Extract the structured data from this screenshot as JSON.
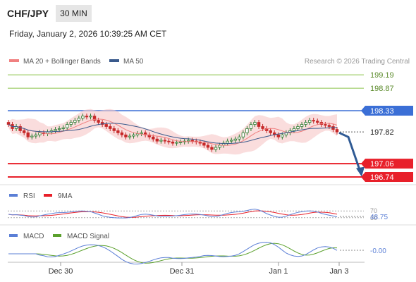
{
  "header": {
    "pair": "CHF/JPY",
    "timeframe": "30 MIN",
    "datetime": "Friday, January 2, 2026 10:39:25 AM CET"
  },
  "legend": {
    "ma20": "MA 20 + Bollinger Bands",
    "ma50": "MA 50",
    "credit": "Research © 2026 Trading Central",
    "rsi": "RSI",
    "rsi_ma": "9MA",
    "macd": "MACD",
    "macd_signal": "MACD Signal"
  },
  "colors": {
    "green_level": "#8bc34a",
    "resistance": "#3b6fd6",
    "support": "#e8202a",
    "candle_up": "#2e7d32",
    "candle_down": "#c62828",
    "band_fill": "#f7c7c7",
    "ma20": "#f08080",
    "ma50": "#3a5a8c",
    "arrow": "#2f5a94",
    "rsi": "#5b7fd6",
    "rsi_ma": "#e8202a",
    "macd": "#5b7fd6",
    "macd_signal": "#5aa02c"
  },
  "chart_data": {
    "type": "candlestick",
    "ylim": [
      196.5,
      199.45
    ],
    "x_ticks": [
      "Dec 30",
      "Dec 31",
      "Jan 1",
      "Jan 3"
    ],
    "levels": [
      {
        "value": 199.19,
        "label": "199.19",
        "kind": "target"
      },
      {
        "value": 198.87,
        "label": "198.87",
        "kind": "target"
      },
      {
        "value": 198.33,
        "label": "198.33",
        "kind": "resistance"
      },
      {
        "value": 197.06,
        "label": "197.06",
        "kind": "support"
      },
      {
        "value": 196.74,
        "label": "196.74",
        "kind": "support"
      }
    ],
    "last_price": {
      "value": 197.82,
      "label": "197.82"
    },
    "forecast_arrow": {
      "from": 197.8,
      "to": 196.78
    },
    "rsi": {
      "last_label": "48.75",
      "level_labels": [
        "70",
        "30"
      ],
      "ylim": [
        0,
        100
      ],
      "levels": [
        70,
        30
      ]
    },
    "macd": {
      "last_label": "-0.00"
    },
    "series_close": [
      198.0,
      197.9,
      197.95,
      197.85,
      197.8,
      197.7,
      197.72,
      197.75,
      197.8,
      197.78,
      197.82,
      197.85,
      197.88,
      197.9,
      197.92,
      198.0,
      198.05,
      198.1,
      198.15,
      198.2,
      198.18,
      198.2,
      198.1,
      198.05,
      198.0,
      197.95,
      197.9,
      197.85,
      197.8,
      197.75,
      197.7,
      197.72,
      197.75,
      197.78,
      197.8,
      197.75,
      197.7,
      197.65,
      197.6,
      197.62,
      197.6,
      197.58,
      197.55,
      197.57,
      197.58,
      197.6,
      197.62,
      197.6,
      197.58,
      197.55,
      197.5,
      197.45,
      197.4,
      197.45,
      197.5,
      197.55,
      197.6,
      197.62,
      197.65,
      197.7,
      197.8,
      197.9,
      198.0,
      198.05,
      197.95,
      197.9,
      197.85,
      197.8,
      197.75,
      197.7,
      197.75,
      197.8,
      197.85,
      197.9,
      197.95,
      198.0,
      198.05,
      198.1,
      198.08,
      198.05,
      198.0,
      197.98,
      197.95,
      197.88,
      197.82
    ]
  }
}
